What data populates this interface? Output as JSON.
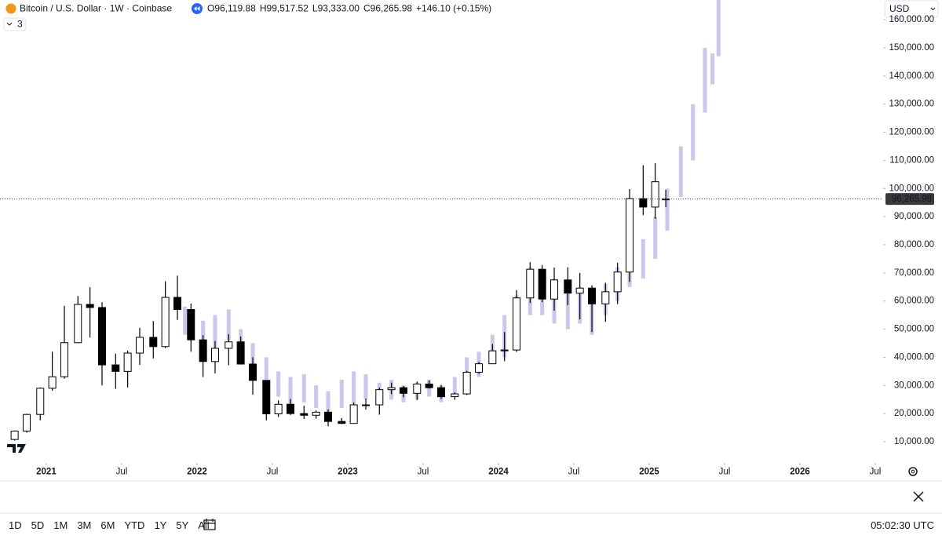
{
  "header": {
    "symbol": "Bitcoin / U.S. Dollar · 1W · Coinbase",
    "ohlc": [
      {
        "label": "O",
        "value": "96,119.88"
      },
      {
        "label": "H",
        "value": "99,517.52"
      },
      {
        "label": "L",
        "value": "93,333.00"
      },
      {
        "label": "C",
        "value": "96,265.98"
      }
    ],
    "change": "+146.10 (+0.15%)",
    "indicator_count": "3",
    "currency": "USD"
  },
  "toolbar": {
    "ranges": [
      "1D",
      "5D",
      "1M",
      "3M",
      "6M",
      "YTD",
      "1Y",
      "5Y",
      "All"
    ],
    "time": "05:02:30 UTC"
  },
  "chart_data": {
    "type": "candlestick",
    "xlim": [
      2020.693,
      2026.552
    ],
    "xticks": [
      2021,
      {
        "value": 2021.5,
        "label": "Jul"
      },
      2022,
      {
        "value": 2022.5,
        "label": "Jul"
      },
      2023,
      {
        "value": 2023.5,
        "label": "Jul"
      },
      2024,
      {
        "value": 2024.5,
        "label": "Jul"
      },
      2025,
      {
        "value": 2025.5,
        "label": "Jul"
      },
      2026,
      {
        "value": 2026.5,
        "label": "Jul"
      }
    ],
    "ylim": [
      2470,
      167000
    ],
    "yticks": [
      {
        "value": 10000,
        "label": "10,000.00"
      },
      {
        "value": 20000,
        "label": "20,000.00"
      },
      {
        "value": 30000,
        "label": "30,000.00"
      },
      {
        "value": 40000,
        "label": "40,000.00"
      },
      {
        "value": 50000,
        "label": "50,000.00"
      },
      {
        "value": 60000,
        "label": "60,000.00"
      },
      {
        "value": 70000,
        "label": "70,000.00"
      },
      {
        "value": 80000,
        "label": "80,000.00"
      },
      {
        "value": 90000,
        "label": "90,000.00"
      },
      {
        "value": 100000,
        "label": "100,000.00"
      },
      {
        "value": 110000,
        "label": "110,000.00"
      },
      {
        "value": 120000,
        "label": "120,000.00"
      },
      {
        "value": 130000,
        "label": "130,000.00"
      },
      {
        "value": 140000,
        "label": "140,000.00"
      },
      {
        "value": 150000,
        "label": "150,000.00"
      },
      {
        "value": 160000,
        "label": "160,000.00"
      }
    ],
    "last_price": 96265.98,
    "last_price_label": "96,265.98",
    "candles": {
      "up_color": "#ffffff",
      "down_color": "#000000",
      "x": [
        2020.79,
        2020.87,
        2020.96,
        2021.04,
        2021.12,
        2021.21,
        2021.29,
        2021.37,
        2021.46,
        2021.54,
        2021.62,
        2021.71,
        2021.79,
        2021.87,
        2021.96,
        2022.04,
        2022.12,
        2022.21,
        2022.29,
        2022.37,
        2022.46,
        2022.54,
        2022.62,
        2022.71,
        2022.79,
        2022.87,
        2022.96,
        2023.04,
        2023.12,
        2023.21,
        2023.29,
        2023.37,
        2023.46,
        2023.54,
        2023.62,
        2023.71,
        2023.79,
        2023.87,
        2023.96,
        2024.04,
        2024.12,
        2024.21,
        2024.29,
        2024.37,
        2024.46,
        2024.54,
        2024.62,
        2024.71,
        2024.79,
        2024.87,
        2024.96,
        2025.04,
        2025.11
      ],
      "open": [
        10800,
        13800,
        19700,
        29000,
        33100,
        45200,
        58800,
        57700,
        37300,
        35000,
        41500,
        47100,
        43800,
        61300,
        57000,
        46200,
        38500,
        43200,
        45500,
        37600,
        31800,
        19900,
        23300,
        20000,
        19400,
        20500,
        17200,
        16500,
        23100,
        23100,
        28500,
        29200,
        27200,
        30500,
        29200,
        26000,
        27000,
        34700,
        37700,
        42300,
        42600,
        61100,
        71300,
        60700,
        67500,
        62800,
        64600,
        59000,
        63300,
        70300,
        96400,
        93400,
        96119.88
      ],
      "high": [
        14000,
        19900,
        29300,
        42000,
        58300,
        61800,
        64900,
        59600,
        41300,
        42400,
        50500,
        52900,
        67000,
        69000,
        59100,
        47900,
        45800,
        48200,
        47400,
        40000,
        31900,
        24700,
        25200,
        22800,
        21100,
        21500,
        18400,
        23900,
        25300,
        29200,
        31000,
        29800,
        31400,
        31800,
        30200,
        27500,
        35200,
        38400,
        44700,
        49000,
        63900,
        73800,
        72800,
        71900,
        72000,
        70000,
        65600,
        66500,
        73600,
        99800,
        108300,
        109000,
        99517.52
      ],
      "low": [
        10400,
        13200,
        17600,
        28100,
        32400,
        45000,
        47000,
        30000,
        28800,
        29300,
        37300,
        39600,
        43300,
        53300,
        42000,
        33000,
        34300,
        37200,
        37700,
        26700,
        17600,
        18800,
        19500,
        18100,
        18200,
        15500,
        16300,
        16500,
        21400,
        19600,
        26900,
        25800,
        24800,
        28900,
        25200,
        24900,
        26600,
        34100,
        37600,
        38600,
        41900,
        59300,
        59600,
        56600,
        58500,
        53500,
        49000,
        52600,
        58900,
        66800,
        90500,
        89200,
        93333
      ],
      "close": [
        13800,
        19700,
        29000,
        33100,
        45200,
        58800,
        57700,
        37300,
        35000,
        41500,
        47100,
        43800,
        61300,
        57000,
        46200,
        38500,
        43200,
        45500,
        37600,
        31800,
        19900,
        23300,
        20000,
        19400,
        20500,
        17200,
        16500,
        23100,
        23100,
        28500,
        29200,
        27200,
        30500,
        29200,
        26000,
        27000,
        34700,
        37700,
        42300,
        42600,
        61100,
        71300,
        60700,
        67500,
        62800,
        64600,
        59000,
        63300,
        70300,
        96400,
        93400,
        102400,
        96265.98
      ]
    },
    "overlay": {
      "color": "#cdc6ea",
      "x": [
        2021.92,
        2022.04,
        2022.12,
        2022.21,
        2022.29,
        2022.37,
        2022.46,
        2022.54,
        2022.62,
        2022.71,
        2022.79,
        2022.87,
        2022.96,
        2023.04,
        2023.12,
        2023.21,
        2023.29,
        2023.37,
        2023.46,
        2023.54,
        2023.62,
        2023.71,
        2023.79,
        2023.87,
        2023.96,
        2024.04,
        2024.12,
        2024.21,
        2024.29,
        2024.37,
        2024.46,
        2024.54,
        2024.62,
        2024.71,
        2024.79,
        2024.87,
        2024.96,
        2025.04,
        2025.12,
        2025.21,
        2025.29,
        2025.37,
        2025.42,
        2025.46
      ],
      "low": [
        48000,
        45000,
        42000,
        46000,
        40000,
        32000,
        28000,
        26000,
        22000,
        24000,
        22000,
        20000,
        22000,
        22000,
        25000,
        23000,
        25000,
        24000,
        25000,
        26000,
        24000,
        27000,
        30000,
        33000,
        38000,
        40000,
        45000,
        55000,
        55000,
        52000,
        50000,
        52000,
        48000,
        55000,
        60000,
        65000,
        68000,
        75000,
        85000,
        97000,
        110000,
        127000,
        137000,
        147000
      ],
      "high": [
        58000,
        53000,
        55000,
        57000,
        50000,
        45000,
        40000,
        35000,
        33000,
        34000,
        30000,
        28000,
        32000,
        35000,
        34000,
        31000,
        32000,
        30000,
        31000,
        32000,
        30000,
        33000,
        40000,
        42000,
        48000,
        55000,
        62000,
        72000,
        70000,
        68000,
        67000,
        65000,
        62000,
        66000,
        72000,
        78000,
        82000,
        90000,
        100000,
        115000,
        130000,
        150000,
        148000,
        170000
      ]
    }
  }
}
